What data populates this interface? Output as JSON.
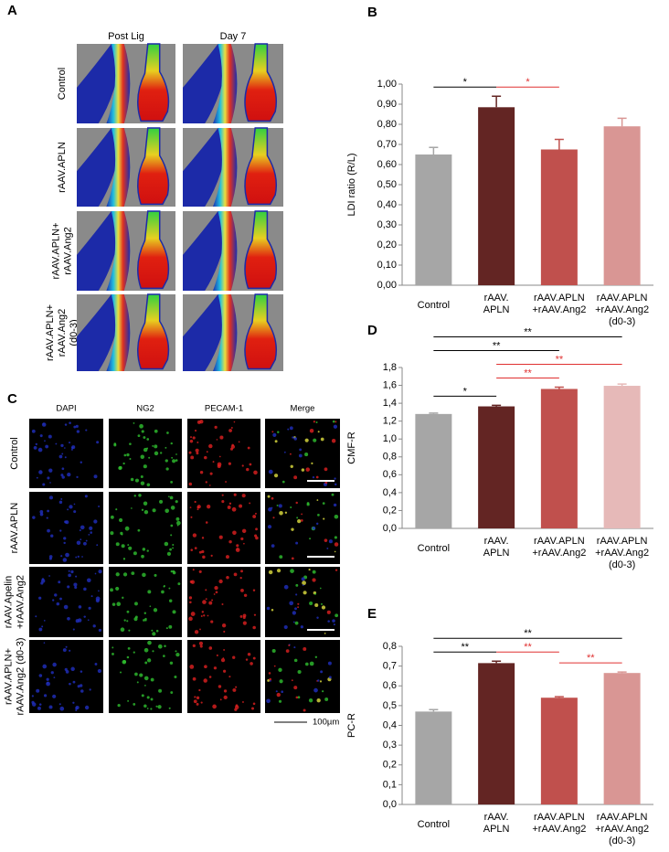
{
  "panel_a": {
    "label": "A",
    "columns": [
      "Post Lig",
      "Day 7"
    ],
    "rows": [
      [
        "Control"
      ],
      [
        "rAAV.APLN"
      ],
      [
        "rAAV.APLN+",
        "rAAV.Ang2"
      ],
      [
        "rAAV.APLN+",
        "rAAV.Ang2",
        "(d0-3)"
      ]
    ]
  },
  "panel_c": {
    "label": "C",
    "columns": [
      "DAPI",
      "NG2",
      "PECAM-1",
      "Merge"
    ],
    "rows": [
      [
        "Control"
      ],
      [
        "rAAV.APLN"
      ],
      [
        "rAAV.Apelin",
        "+rAAV.Ang2"
      ],
      [
        "rAAV.APLN+",
        "rAAV.Ang2 (d0-3)"
      ]
    ],
    "scale_bar": "100µm"
  },
  "chart_data": [
    {
      "type": "bar",
      "panel": "B",
      "ylabel": "LDI ratio (R/L)",
      "categories": [
        [
          "Control"
        ],
        [
          "rAAV.",
          "APLN"
        ],
        [
          "rAAV.APLN",
          "+rAAV.Ang2"
        ],
        [
          "rAAV.APLN",
          "+rAAV.Ang2",
          "(d0-3)"
        ]
      ],
      "values": [
        0.65,
        0.885,
        0.675,
        0.79
      ],
      "errors": [
        0.035,
        0.055,
        0.05,
        0.04
      ],
      "colors": [
        "#a6a6a6",
        "#632523",
        "#c0504d",
        "#d99694"
      ],
      "ylim": [
        0,
        1.0
      ],
      "yticks": [
        {
          "value": 0,
          "label": "0,00"
        },
        {
          "value": 0.1,
          "label": "0,10"
        },
        {
          "value": 0.2,
          "label": "0,20"
        },
        {
          "value": 0.3,
          "label": "0,30"
        },
        {
          "value": 0.4,
          "label": "0,40"
        },
        {
          "value": 0.5,
          "label": "0,50"
        },
        {
          "value": 0.6,
          "label": "0,60"
        },
        {
          "value": 0.7,
          "label": "0,70"
        },
        {
          "value": 0.8,
          "label": "0,80"
        },
        {
          "value": 0.9,
          "label": "0,90"
        },
        {
          "value": 1.0,
          "label": "1,00"
        }
      ],
      "annotations": [
        {
          "text": "*",
          "from": 0,
          "to": 1,
          "color": "#000000"
        },
        {
          "text": "*",
          "from": 1,
          "to": 2,
          "color": "#e03030"
        }
      ]
    },
    {
      "type": "bar",
      "panel": "D",
      "ylabel": "CMF-R",
      "categories": [
        [
          "Control"
        ],
        [
          "rAAV.",
          "APLN"
        ],
        [
          "rAAV.APLN",
          "+rAAV.Ang2"
        ],
        [
          "rAAV.APLN",
          "+rAAV.Ang2",
          "(d0-3)"
        ]
      ],
      "values": [
        1.28,
        1.365,
        1.56,
        1.595
      ],
      "errors": [
        0.01,
        0.012,
        0.02,
        0.02
      ],
      "colors": [
        "#a6a6a6",
        "#632523",
        "#c0504d",
        "#e6b9b8"
      ],
      "ylim": [
        0,
        1.8
      ],
      "yticks": [
        {
          "value": 0,
          "label": "0,0"
        },
        {
          "value": 0.2,
          "label": "0,2"
        },
        {
          "value": 0.4,
          "label": "0,4"
        },
        {
          "value": 0.6,
          "label": "0,6"
        },
        {
          "value": 0.8,
          "label": "0,8"
        },
        {
          "value": 1.0,
          "label": "1,0"
        },
        {
          "value": 1.2,
          "label": "1,2"
        },
        {
          "value": 1.4,
          "label": "1,4"
        },
        {
          "value": 1.6,
          "label": "1,6"
        },
        {
          "value": 1.8,
          "label": "1,8"
        }
      ],
      "annotations": [
        {
          "text": "*",
          "from": 0,
          "to": 1,
          "color": "#000000"
        },
        {
          "text": "**",
          "from": 1,
          "to": 2,
          "color": "#e03030"
        },
        {
          "text": "**",
          "from": 1,
          "to": 3,
          "color": "#e03030"
        },
        {
          "text": "**",
          "from": 0,
          "to": 2,
          "color": "#000000"
        },
        {
          "text": "**",
          "from": 0,
          "to": 3,
          "color": "#000000"
        }
      ]
    },
    {
      "type": "bar",
      "panel": "E",
      "ylabel": "PC-R",
      "categories": [
        [
          "Control"
        ],
        [
          "rAAV.",
          "APLN"
        ],
        [
          "rAAV.APLN",
          "+rAAV.Ang2"
        ],
        [
          "rAAV.APLN",
          "+rAAV.Ang2",
          "(d0-3)"
        ]
      ],
      "values": [
        0.47,
        0.715,
        0.54,
        0.665
      ],
      "errors": [
        0.01,
        0.01,
        0.005,
        0.005
      ],
      "colors": [
        "#a6a6a6",
        "#632523",
        "#c0504d",
        "#d99694"
      ],
      "ylim": [
        0,
        0.8
      ],
      "yticks": [
        {
          "value": 0,
          "label": "0,0"
        },
        {
          "value": 0.1,
          "label": "0,1"
        },
        {
          "value": 0.2,
          "label": "0,2"
        },
        {
          "value": 0.3,
          "label": "0,3"
        },
        {
          "value": 0.4,
          "label": "0,4"
        },
        {
          "value": 0.5,
          "label": "0,5"
        },
        {
          "value": 0.6,
          "label": "0,6"
        },
        {
          "value": 0.7,
          "label": "0,7"
        },
        {
          "value": 0.8,
          "label": "0,8"
        }
      ],
      "annotations": [
        {
          "text": "**",
          "from": 0,
          "to": 1,
          "color": "#000000"
        },
        {
          "text": "**",
          "from": 1,
          "to": 2,
          "color": "#e03030"
        },
        {
          "text": "**",
          "from": 2,
          "to": 3,
          "color": "#e03030"
        },
        {
          "text": "**",
          "from": 0,
          "to": 3,
          "color": "#000000"
        }
      ]
    }
  ]
}
